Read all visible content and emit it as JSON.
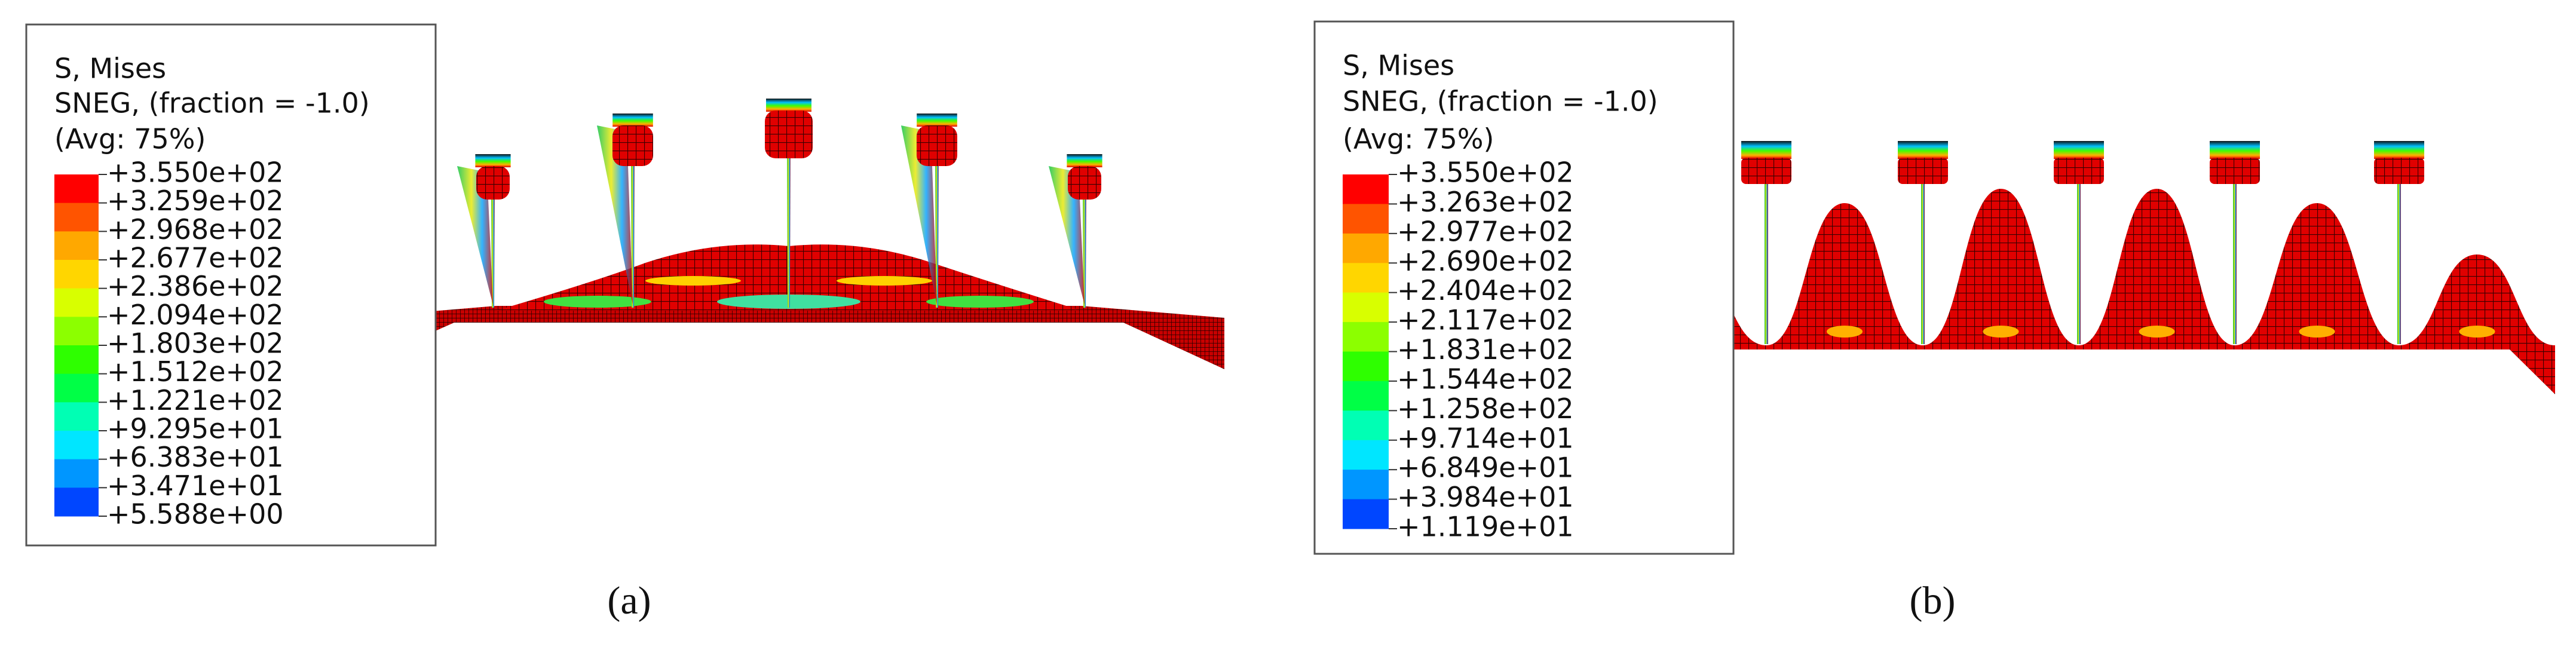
{
  "panels": [
    {
      "legend": {
        "title_lines": [
          "S, Mises",
          "SNEG, (fraction = -1.0)",
          "(Avg: 75%)"
        ],
        "levels": [
          "+3.550e+02",
          "+3.259e+02",
          "+2.968e+02",
          "+2.677e+02",
          "+2.386e+02",
          "+2.094e+02",
          "+1.803e+02",
          "+1.512e+02",
          "+1.221e+02",
          "+9.295e+01",
          "+6.383e+01",
          "+3.471e+01",
          "+5.588e+00"
        ]
      },
      "caption": "(a)"
    },
    {
      "legend": {
        "title_lines": [
          "S, Mises",
          "SNEG, (fraction = -1.0)",
          "(Avg: 75%)"
        ],
        "levels": [
          "+3.550e+02",
          "+3.263e+02",
          "+2.977e+02",
          "+2.690e+02",
          "+2.404e+02",
          "+2.117e+02",
          "+1.831e+02",
          "+1.544e+02",
          "+1.258e+02",
          "+9.714e+01",
          "+6.849e+01",
          "+3.984e+01",
          "+1.119e+01"
        ]
      },
      "caption": "(b)"
    }
  ]
}
